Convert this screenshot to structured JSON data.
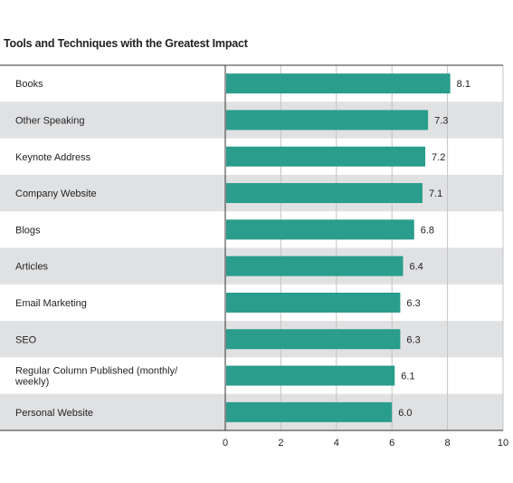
{
  "chart_data": {
    "type": "bar",
    "orientation": "horizontal",
    "title": "Tools and Techniques with the Greatest Impact",
    "categories": [
      "Books",
      "Other Speaking",
      "Keynote Address",
      "Company Website",
      "Blogs",
      "Articles",
      "Email Marketing",
      "SEO",
      "Regular Column Published (monthly/ weekly)",
      "Personal Website"
    ],
    "category_lines": [
      [
        "Books"
      ],
      [
        "Other Speaking"
      ],
      [
        "Keynote Address"
      ],
      [
        "Company Website"
      ],
      [
        "Blogs"
      ],
      [
        "Articles"
      ],
      [
        "Email Marketing"
      ],
      [
        "SEO"
      ],
      [
        "Regular Column Published (monthly/",
        "weekly)"
      ],
      [
        "Personal Website"
      ]
    ],
    "values": [
      8.1,
      7.3,
      7.2,
      7.1,
      6.8,
      6.4,
      6.3,
      6.3,
      6.1,
      6.0
    ],
    "value_labels": [
      "8.1",
      "7.3",
      "7.2",
      "7.1",
      "6.8",
      "6.4",
      "6.3",
      "6.3",
      "6.1",
      "6.0"
    ],
    "xlim": [
      0,
      10
    ],
    "xticks": [
      "0",
      "2",
      "4",
      "6",
      "8",
      "10"
    ],
    "grid": true,
    "colors": {
      "bar": "#2a9d8c",
      "band": "#e0e1e3",
      "grid": "#c4c4c4",
      "axis": "#333333"
    }
  }
}
